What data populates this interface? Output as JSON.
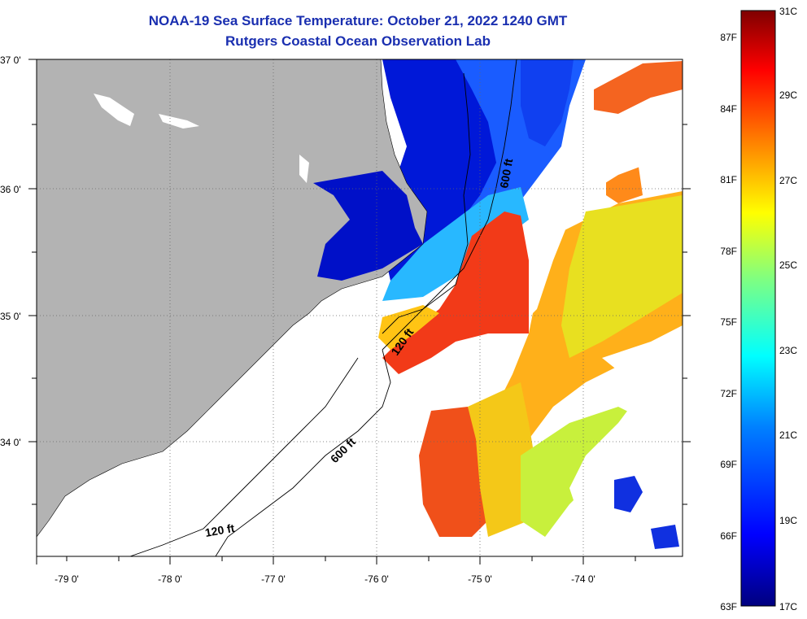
{
  "header": {
    "title": "NOAA-19 Sea Surface Temperature:  October 21, 2022 1240 GMT",
    "subtitle": "Rutgers Coastal Ocean Observation Lab"
  },
  "axes": {
    "latitude_labels": [
      "37 0'",
      "36 0'",
      "35 0'",
      "34 0'"
    ],
    "longitude_labels": [
      "-79 0'",
      "-78 0'",
      "-77 0'",
      "-76 0'",
      "-75 0'",
      "-74 0'"
    ]
  },
  "isobaths": {
    "label_600_north": "600 ft",
    "label_120_mid": "120 ft",
    "label_600_south": "600 ft",
    "label_120_south": "120 ft"
  },
  "colorbar": {
    "fahrenheit": [
      "87F",
      "84F",
      "81F",
      "78F",
      "75F",
      "72F",
      "69F",
      "66F",
      "63F"
    ],
    "celsius": [
      "31C",
      "29C",
      "27C",
      "25C",
      "23C",
      "21C",
      "19C",
      "17C"
    ]
  },
  "colors": {
    "title": "#1a2fb0",
    "land": "#b3b3b3",
    "cloud": "#ffffff",
    "colormap": [
      "#00007f",
      "#0000ff",
      "#0080ff",
      "#00ffff",
      "#80ff80",
      "#ffff00",
      "#ff8000",
      "#ff0000",
      "#7f0000"
    ]
  }
}
